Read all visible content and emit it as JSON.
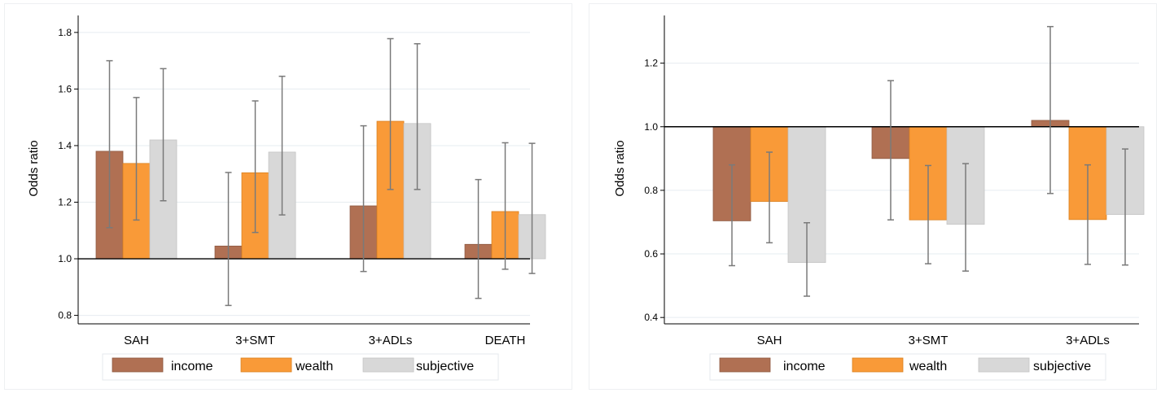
{
  "colors": {
    "income": "#b07053",
    "wealth": "#f99a38",
    "subjective": "#d8d8d8",
    "income_edge": "#8e5a42",
    "wealth_edge": "#d98020",
    "subjective_edge": "#c4c4c4",
    "errorbar": "#7a7a7a",
    "grid": "#e6ecf0",
    "axis": "#000000"
  },
  "legend": {
    "entries": [
      "income",
      "wealth",
      "subjective"
    ]
  },
  "chart_data": [
    {
      "type": "bar",
      "ylabel": "Odds ratio",
      "xlabel": "",
      "title": "",
      "baseline": 1.0,
      "ylim": [
        0.77,
        1.86
      ],
      "yticks": [
        0.8,
        1.0,
        1.2,
        1.4,
        1.6,
        1.8
      ],
      "ytick_labels": [
        "0.8",
        "1.0",
        "1.2",
        "1.4",
        "1.6",
        "1.8"
      ],
      "grid": true,
      "legend_position": "bottom",
      "categories": [
        "SAH",
        "3+SMT",
        "3+ADLs",
        "DEATH"
      ],
      "series": [
        {
          "name": "income",
          "values": [
            1.38,
            1.045,
            1.187,
            1.051
          ],
          "ci_low": [
            1.11,
            0.835,
            0.955,
            0.86
          ],
          "ci_high": [
            1.7,
            1.305,
            1.47,
            1.28
          ]
        },
        {
          "name": "wealth",
          "values": [
            1.337,
            1.304,
            1.486,
            1.167
          ],
          "ci_low": [
            1.137,
            1.093,
            1.245,
            0.963
          ],
          "ci_high": [
            1.57,
            1.558,
            1.778,
            1.41
          ]
        },
        {
          "name": "subjective",
          "values": [
            1.42,
            1.377,
            1.478,
            1.156
          ],
          "ci_low": [
            1.205,
            1.155,
            1.245,
            0.948
          ],
          "ci_high": [
            1.672,
            1.645,
            1.76,
            1.408
          ]
        }
      ]
    },
    {
      "type": "bar",
      "ylabel": "Odds ratio",
      "xlabel": "",
      "title": "",
      "baseline": 1.0,
      "ylim": [
        0.38,
        1.35
      ],
      "yticks": [
        0.4,
        0.6,
        0.8,
        1.0,
        1.2
      ],
      "ytick_labels": [
        "0.4",
        "0.6",
        "0.8",
        "1.0",
        "1.2"
      ],
      "grid": true,
      "legend_position": "bottom",
      "categories": [
        "SAH",
        "3+SMT",
        "3+ADLs"
      ],
      "series": [
        {
          "name": "income",
          "values": [
            0.704,
            0.9,
            1.02
          ],
          "ci_low": [
            0.563,
            0.707,
            0.79
          ],
          "ci_high": [
            0.88,
            1.145,
            1.315
          ]
        },
        {
          "name": "wealth",
          "values": [
            0.765,
            0.707,
            0.708
          ],
          "ci_low": [
            0.635,
            0.569,
            0.567
          ],
          "ci_high": [
            0.92,
            0.878,
            0.88
          ]
        },
        {
          "name": "subjective",
          "values": [
            0.573,
            0.693,
            0.724
          ],
          "ci_low": [
            0.467,
            0.546,
            0.565
          ],
          "ci_high": [
            0.698,
            0.884,
            0.93
          ]
        }
      ]
    }
  ]
}
